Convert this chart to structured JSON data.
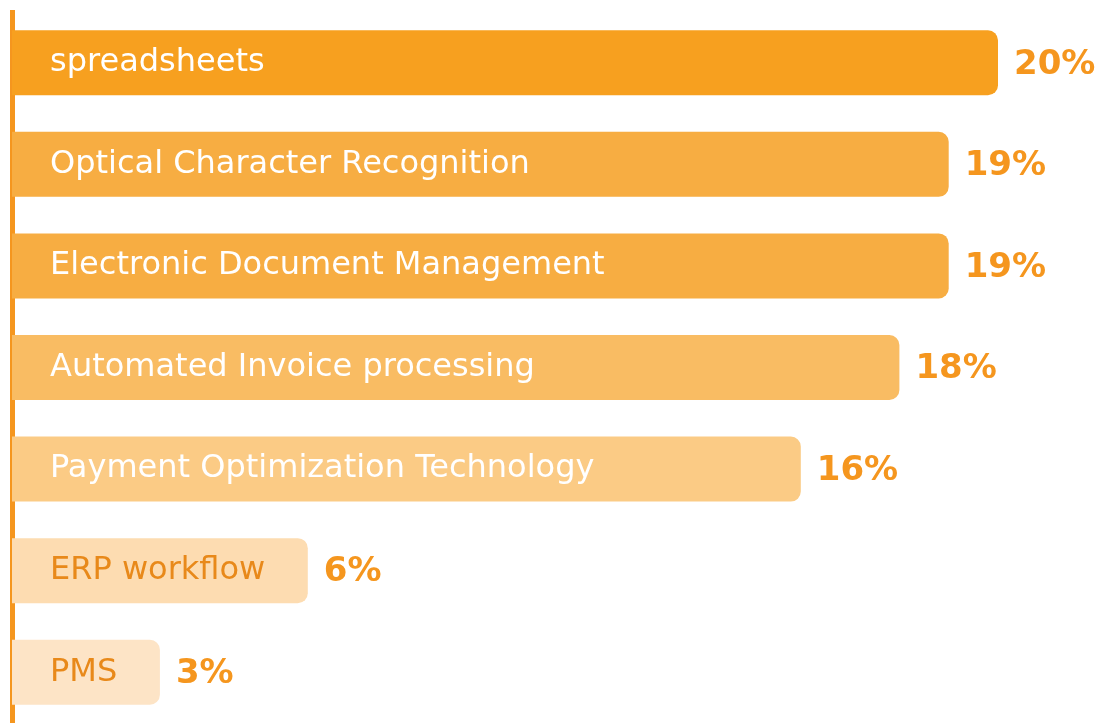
{
  "chart_data": {
    "type": "bar",
    "orientation": "horizontal",
    "categories": [
      "spreadsheets",
      "Optical Character Recognition",
      "Electronic Document Management",
      "Automated Invoice processing",
      "Payment Optimization Technology",
      "ERP workflow",
      "PMS"
    ],
    "values": [
      20,
      19,
      19,
      18,
      16,
      6,
      3
    ],
    "value_labels": [
      "20%",
      "19%",
      "19%",
      "18%",
      "16%",
      "6%",
      "3%"
    ],
    "colors": [
      "#f7a01f",
      "#f7ad42",
      "#f7ad42",
      "#f9bc63",
      "#fbcb85",
      "#fddcb1",
      "#fde4c6"
    ],
    "tick_labels": "y",
    "legend": false,
    "grid": false
  }
}
